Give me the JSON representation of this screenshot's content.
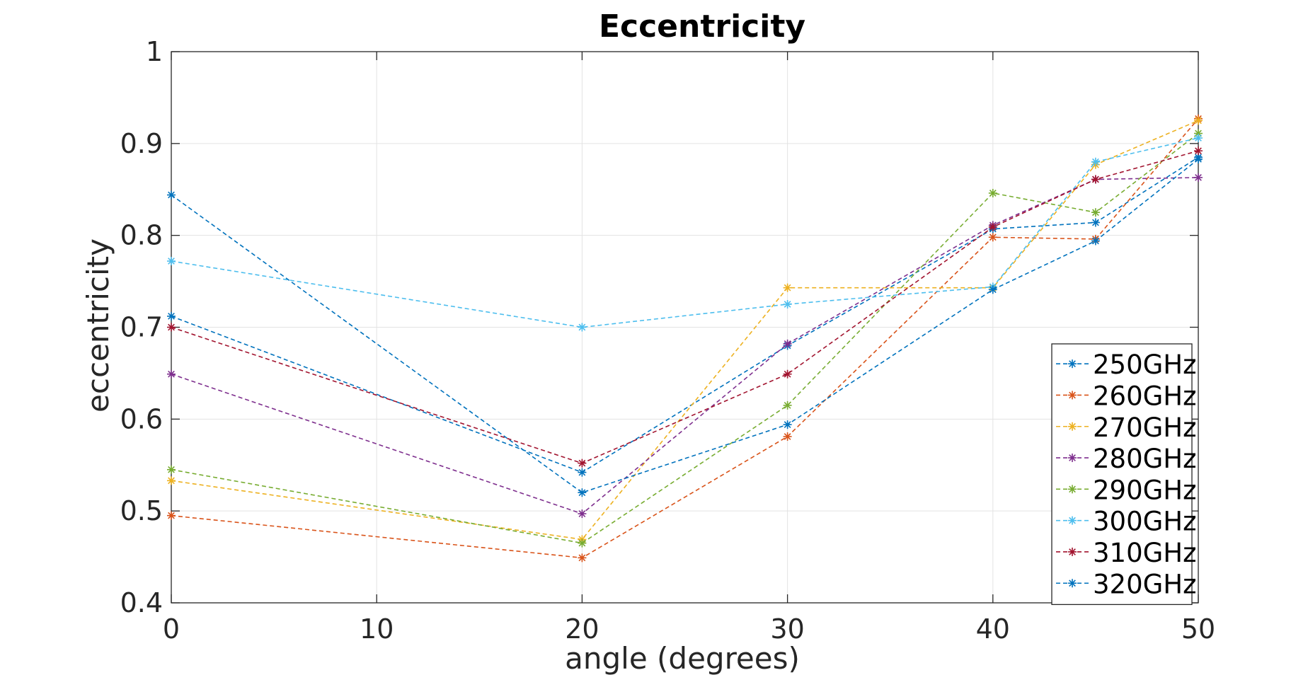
{
  "chart_data": {
    "type": "line",
    "title": "Eccentricity",
    "xlabel": "angle (degrees)",
    "ylabel": "eccentricity",
    "xlim": [
      0,
      50
    ],
    "ylim": [
      0.4,
      1
    ],
    "xticks": [
      0,
      10,
      20,
      30,
      40,
      50
    ],
    "xtick_labels": [
      "0",
      "10",
      "20",
      "30",
      "40",
      "50"
    ],
    "yticks": [
      0.4,
      0.5,
      0.6,
      0.7,
      0.8,
      0.9,
      1
    ],
    "ytick_labels": [
      "0.4",
      "0.5",
      "0.6",
      "0.7",
      "0.8",
      "0.9",
      "1"
    ],
    "grid": true,
    "legend_position": "bottom-right",
    "marker": "asterisk",
    "line_style": "dashed",
    "x": [
      0,
      20,
      30,
      40,
      45,
      50
    ],
    "series": [
      {
        "name": "250GHz",
        "color": "#0072BD",
        "values": [
          0.712,
          0.542,
          0.68,
          0.807,
          0.814,
          0.885
        ]
      },
      {
        "name": "260GHz",
        "color": "#D95319",
        "values": [
          0.495,
          0.449,
          0.581,
          0.798,
          0.796,
          0.927
        ]
      },
      {
        "name": "270GHz",
        "color": "#EDB120",
        "values": [
          0.533,
          0.469,
          0.743,
          0.743,
          0.877,
          0.925
        ]
      },
      {
        "name": "280GHz",
        "color": "#7E2F8E",
        "values": [
          0.649,
          0.497,
          0.682,
          0.811,
          0.861,
          0.863
        ]
      },
      {
        "name": "290GHz",
        "color": "#77AC30",
        "values": [
          0.545,
          0.465,
          0.615,
          0.846,
          0.825,
          0.911
        ]
      },
      {
        "name": "300GHz",
        "color": "#4DBEEE",
        "values": [
          0.772,
          0.7,
          0.725,
          0.744,
          0.88,
          0.906
        ]
      },
      {
        "name": "310GHz",
        "color": "#A2142F",
        "values": [
          0.7,
          0.552,
          0.649,
          0.809,
          0.861,
          0.892
        ]
      },
      {
        "name": "320GHz",
        "color": "#0072BD",
        "values": [
          0.844,
          0.52,
          0.594,
          0.741,
          0.794,
          0.883
        ]
      }
    ]
  }
}
